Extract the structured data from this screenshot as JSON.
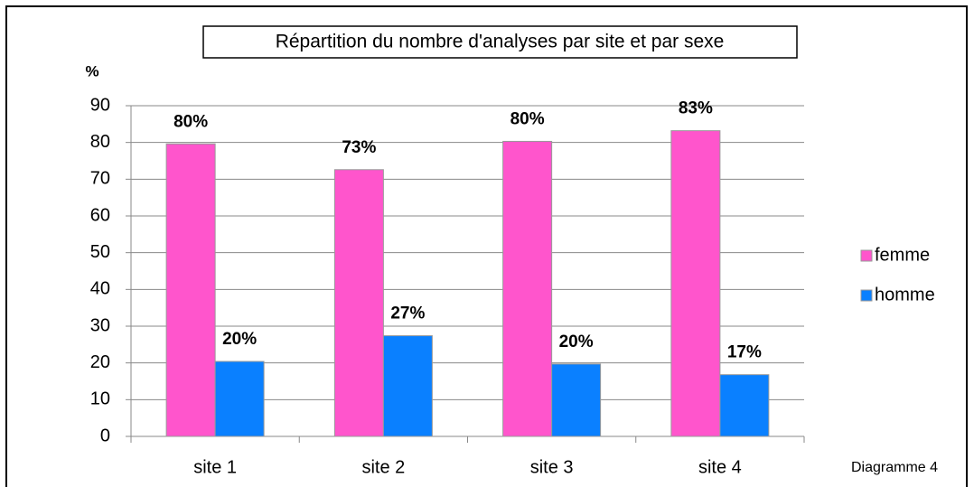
{
  "chart_data": {
    "type": "bar",
    "title": "Répartition du nombre d'analyses par site et par sexe",
    "y_label": "%",
    "annotation": "Diagramme 4",
    "categories": [
      "site 1",
      "site 2",
      "site 3",
      "site 4"
    ],
    "series": [
      {
        "name": "femme",
        "color": "#ff55cc",
        "values": [
          79.6,
          72.6,
          80.3,
          83.2
        ],
        "value_labels": [
          "80%",
          "73%",
          "80%",
          "83%"
        ]
      },
      {
        "name": "homme",
        "color": "#0a80ff",
        "values": [
          20.4,
          27.4,
          19.7,
          16.8
        ],
        "value_labels": [
          "20%",
          "27%",
          "20%",
          "17%"
        ]
      }
    ],
    "ylim": [
      0,
      90
    ],
    "yticks": [
      0,
      10,
      20,
      30,
      40,
      50,
      60,
      70,
      80,
      90
    ],
    "grid": true,
    "legend": "right"
  }
}
